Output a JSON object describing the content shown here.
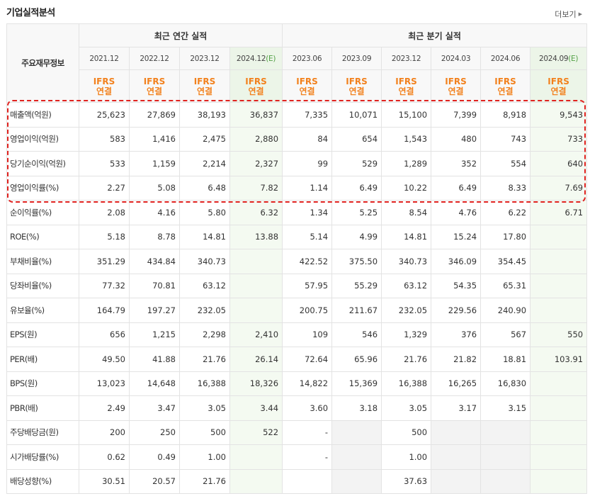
{
  "section_title": "기업실적분석",
  "more_label": "더보기",
  "more_icon": "triangle-right-icon",
  "header": {
    "corner_label": "주요재무정보",
    "annual_label": "최근 연간 실적",
    "quarter_label": "최근 분기 실적",
    "annual_dates": [
      "2021.12",
      "2022.12",
      "2023.12",
      "2024.12"
    ],
    "annual_est_suffix": "(E)",
    "quarter_dates": [
      "2023.06",
      "2023.09",
      "2023.12",
      "2024.03",
      "2024.06",
      "2024.09"
    ],
    "quarter_est_suffix": "(E)",
    "ifrs_top": "IFRS",
    "ifrs_bottom": "연결"
  },
  "rows": [
    {
      "label": "매출액(억원)",
      "values": [
        "25,623",
        "27,869",
        "38,193",
        "36,837",
        "7,335",
        "10,071",
        "15,100",
        "7,399",
        "8,918",
        "9,543"
      ]
    },
    {
      "label": "영업이익(억원)",
      "values": [
        "583",
        "1,416",
        "2,475",
        "2,880",
        "84",
        "654",
        "1,543",
        "480",
        "743",
        "733"
      ]
    },
    {
      "label": "당기순이익(억원)",
      "values": [
        "533",
        "1,159",
        "2,214",
        "2,327",
        "99",
        "529",
        "1,289",
        "352",
        "554",
        "640"
      ]
    },
    {
      "label": "영업이익률(%)",
      "values": [
        "2.27",
        "5.08",
        "6.48",
        "7.82",
        "1.14",
        "6.49",
        "10.22",
        "6.49",
        "8.33",
        "7.69"
      ]
    },
    {
      "label": "순이익률(%)",
      "values": [
        "2.08",
        "4.16",
        "5.80",
        "6.32",
        "1.34",
        "5.25",
        "8.54",
        "4.76",
        "6.22",
        "6.71"
      ]
    },
    {
      "label": "ROE(%)",
      "values": [
        "5.18",
        "8.78",
        "14.81",
        "13.88",
        "5.14",
        "4.99",
        "14.81",
        "15.24",
        "17.80",
        ""
      ]
    },
    {
      "label": "부채비율(%)",
      "values": [
        "351.29",
        "434.84",
        "340.73",
        "",
        "422.52",
        "375.50",
        "340.73",
        "346.09",
        "354.45",
        ""
      ]
    },
    {
      "label": "당좌비율(%)",
      "values": [
        "77.32",
        "70.81",
        "63.12",
        "",
        "57.95",
        "55.29",
        "63.12",
        "54.35",
        "65.31",
        ""
      ]
    },
    {
      "label": "유보율(%)",
      "values": [
        "164.79",
        "197.27",
        "232.05",
        "",
        "200.75",
        "211.67",
        "232.05",
        "229.56",
        "240.90",
        ""
      ]
    },
    {
      "label": "EPS(원)",
      "values": [
        "656",
        "1,215",
        "2,298",
        "2,410",
        "109",
        "546",
        "1,329",
        "376",
        "567",
        "550"
      ]
    },
    {
      "label": "PER(배)",
      "values": [
        "49.50",
        "41.88",
        "21.76",
        "26.14",
        "72.64",
        "65.96",
        "21.76",
        "21.82",
        "18.81",
        "103.91"
      ]
    },
    {
      "label": "BPS(원)",
      "values": [
        "13,023",
        "14,648",
        "16,388",
        "18,326",
        "14,822",
        "15,369",
        "16,388",
        "16,265",
        "16,830",
        ""
      ]
    },
    {
      "label": "PBR(배)",
      "values": [
        "2.49",
        "3.47",
        "3.05",
        "3.44",
        "3.60",
        "3.18",
        "3.05",
        "3.17",
        "3.15",
        ""
      ]
    },
    {
      "label": "주당배당금(원)",
      "values": [
        "200",
        "250",
        "500",
        "522",
        "-",
        "",
        "500",
        "",
        "",
        ""
      ]
    },
    {
      "label": "시가배당률(%)",
      "values": [
        "0.62",
        "0.49",
        "1.00",
        "",
        "-",
        "",
        "1.00",
        "",
        "",
        ""
      ]
    },
    {
      "label": "배당성향(%)",
      "values": [
        "30.51",
        "20.57",
        "21.76",
        "",
        "",
        "",
        "37.63",
        "",
        "",
        ""
      ]
    }
  ],
  "gray_cells": [
    [
      13,
      5
    ],
    [
      13,
      7
    ],
    [
      13,
      8
    ],
    [
      14,
      5
    ],
    [
      14,
      7
    ],
    [
      14,
      8
    ],
    [
      15,
      5
    ],
    [
      15,
      7
    ],
    [
      15,
      8
    ]
  ],
  "est_columns": [
    3,
    9
  ],
  "separator_rows": [
    0,
    3,
    6,
    9,
    13
  ]
}
